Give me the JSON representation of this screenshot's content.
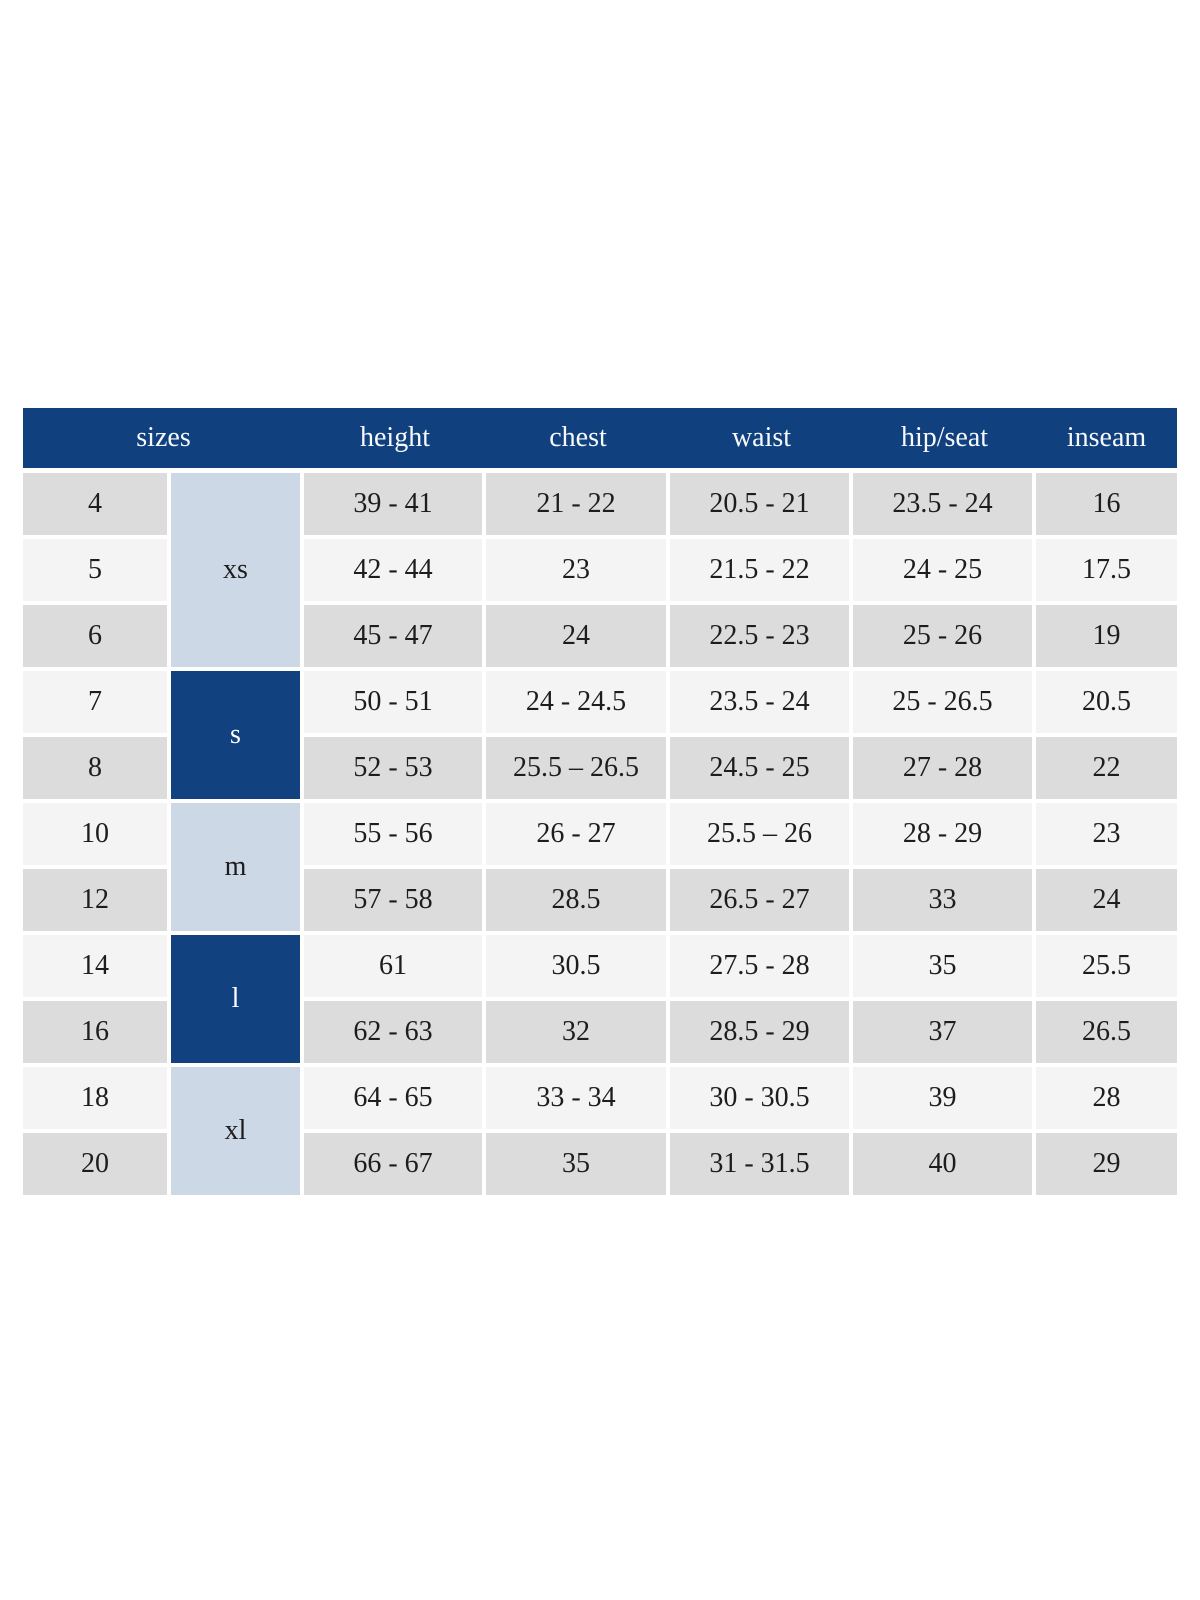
{
  "chart_data": {
    "type": "table",
    "headers": [
      "sizes",
      "height",
      "chest",
      "waist",
      "hip/seat",
      "inseam"
    ],
    "groups": [
      {
        "label": "xs",
        "shade": "light",
        "rows": [
          {
            "size": "4",
            "height": "39 - 41",
            "chest": "21 - 22",
            "waist": "20.5 - 21",
            "hip_seat": "23.5 - 24",
            "inseam": "16"
          },
          {
            "size": "5",
            "height": "42 - 44",
            "chest": "23",
            "waist": "21.5 - 22",
            "hip_seat": "24 - 25",
            "inseam": "17.5"
          },
          {
            "size": "6",
            "height": "45 - 47",
            "chest": "24",
            "waist": "22.5 - 23",
            "hip_seat": "25 - 26",
            "inseam": "19"
          }
        ]
      },
      {
        "label": "s",
        "shade": "dark",
        "rows": [
          {
            "size": "7",
            "height": "50 - 51",
            "chest": "24 - 24.5",
            "waist": "23.5 - 24",
            "hip_seat": "25 - 26.5",
            "inseam": "20.5"
          },
          {
            "size": "8",
            "height": "52 - 53",
            "chest": "25.5 – 26.5",
            "waist": "24.5 - 25",
            "hip_seat": "27 - 28",
            "inseam": "22"
          }
        ]
      },
      {
        "label": "m",
        "shade": "light",
        "rows": [
          {
            "size": "10",
            "height": "55 - 56",
            "chest": "26 - 27",
            "waist": "25.5 – 26",
            "hip_seat": "28 - 29",
            "inseam": "23"
          },
          {
            "size": "12",
            "height": "57 - 58",
            "chest": "28.5",
            "waist": "26.5 - 27",
            "hip_seat": "33",
            "inseam": "24"
          }
        ]
      },
      {
        "label": "l",
        "shade": "dark",
        "rows": [
          {
            "size": "14",
            "height": "61",
            "chest": "30.5",
            "waist": "27.5 - 28",
            "hip_seat": "35",
            "inseam": "25.5"
          },
          {
            "size": "16",
            "height": "62 - 63",
            "chest": "32",
            "waist": "28.5 - 29",
            "hip_seat": "37",
            "inseam": "26.5"
          }
        ]
      },
      {
        "label": "xl",
        "shade": "light",
        "rows": [
          {
            "size": "18",
            "height": "64 - 65",
            "chest": "33 - 34",
            "waist": "30 - 30.5",
            "hip_seat": "39",
            "inseam": "28"
          },
          {
            "size": "20",
            "height": "66 - 67",
            "chest": "35",
            "waist": "31 - 31.5",
            "hip_seat": "40",
            "inseam": "29"
          }
        ]
      }
    ]
  },
  "colors": {
    "header_bg": "#11407e",
    "group_dark": "#12417f",
    "group_light": "#ccd8e6",
    "row_gray": "#dcdcdc",
    "row_light": "#f4f4f4",
    "header_text": "#f7f9fc",
    "body_text": "#1d1d1d"
  }
}
